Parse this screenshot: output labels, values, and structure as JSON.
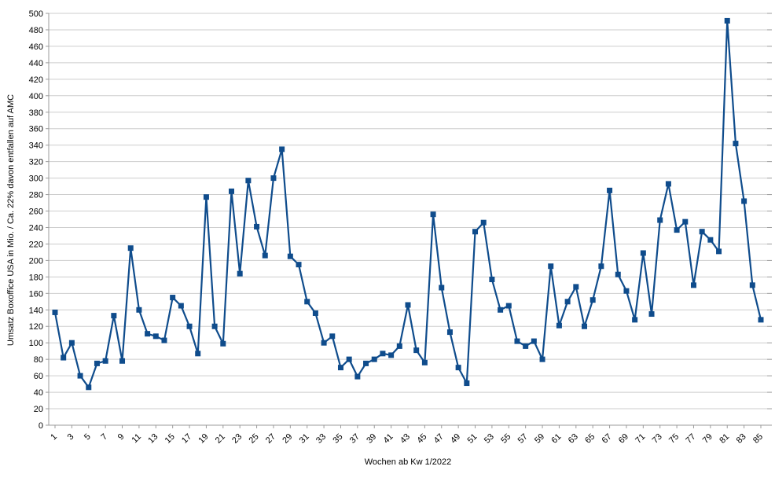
{
  "chart_data": {
    "type": "line",
    "title": "",
    "xlabel": "Wochen ab Kw 1/2022",
    "ylabel": "Umsatz Boxoffice USA in Mio. / Ca. 22% davon entfallen auf AMC",
    "x": [
      1,
      2,
      3,
      4,
      5,
      6,
      7,
      8,
      9,
      10,
      11,
      12,
      13,
      14,
      15,
      16,
      17,
      18,
      19,
      20,
      21,
      22,
      23,
      24,
      25,
      26,
      27,
      28,
      29,
      30,
      31,
      32,
      33,
      34,
      35,
      36,
      37,
      38,
      39,
      40,
      41,
      42,
      43,
      44,
      45,
      46,
      47,
      48,
      49,
      50,
      51,
      52,
      53,
      54,
      55,
      56,
      57,
      58,
      59,
      60,
      61,
      62,
      63,
      64,
      65,
      66,
      67,
      68,
      69,
      70,
      71,
      72,
      73,
      74,
      75,
      76,
      77,
      78,
      79,
      80,
      81,
      82,
      83,
      84,
      85
    ],
    "series": [
      {
        "name": "Umsatz Boxoffice USA in Mio.",
        "values": [
          137,
          82,
          100,
          60,
          46,
          75,
          78,
          133,
          78,
          215,
          140,
          111,
          108,
          103,
          155,
          145,
          120,
          87,
          277,
          120,
          99,
          284,
          184,
          297,
          241,
          206,
          300,
          335,
          205,
          195,
          150,
          136,
          100,
          108,
          70,
          80,
          59,
          75,
          80,
          87,
          85,
          96,
          146,
          91,
          76,
          256,
          167,
          113,
          70,
          51,
          235,
          246,
          177,
          140,
          145,
          102,
          96,
          102,
          80,
          193,
          121,
          150,
          168,
          120,
          152,
          193,
          285,
          183,
          163,
          128,
          209,
          135,
          249,
          293,
          237,
          247,
          170,
          235,
          225,
          211,
          491,
          342,
          272,
          170,
          128
        ]
      }
    ],
    "ylim": [
      0,
      500
    ],
    "ytick_step": 20,
    "xtick_labels": [
      "1",
      "3",
      "5",
      "7",
      "9",
      "11",
      "13",
      "15",
      "17",
      "19",
      "21",
      "23",
      "25",
      "27",
      "29",
      "31",
      "33",
      "35",
      "37",
      "39",
      "41",
      "43",
      "45",
      "47",
      "49",
      "51",
      "53",
      "55",
      "57",
      "59",
      "61",
      "63",
      "65",
      "67",
      "69",
      "71",
      "73",
      "75",
      "77",
      "79",
      "81",
      "83",
      "85"
    ],
    "grid": true,
    "legend": "none",
    "marker": "square",
    "series_color": "#0f4c8c",
    "gridline_color": "#cdcdcd",
    "axis_color": "#9b9b9b",
    "text_color": "#000000",
    "background": "#ffffff"
  }
}
